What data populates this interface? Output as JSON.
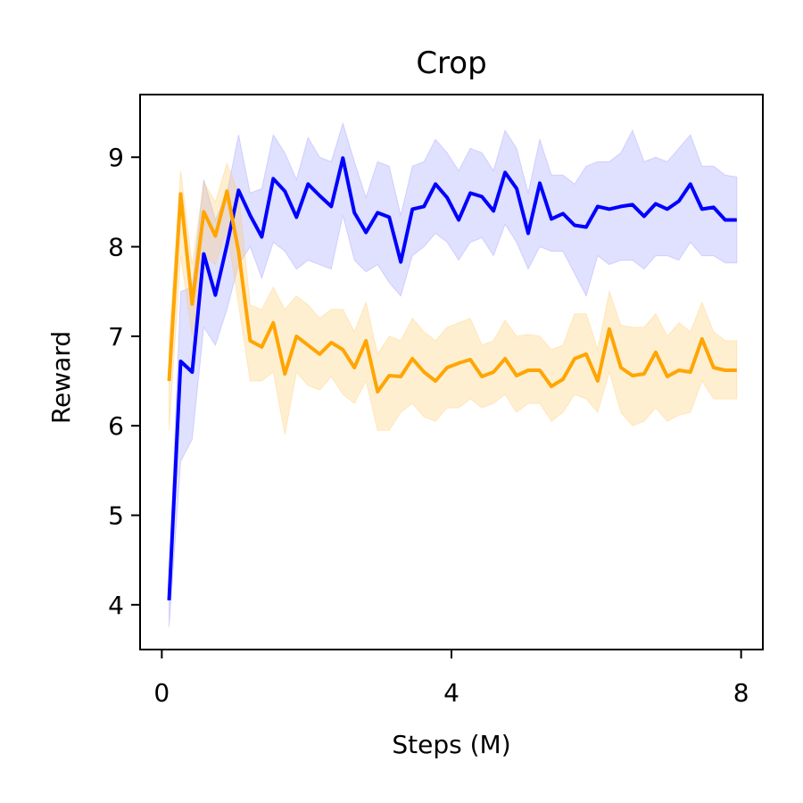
{
  "chart_data": {
    "type": "line",
    "title": "Crop",
    "xlabel": "Steps (M)",
    "ylabel": "Reward",
    "xlim": [
      -0.3,
      8.3
    ],
    "ylim": [
      3.5,
      9.7
    ],
    "xticks": [
      0,
      4,
      8
    ],
    "xtick_labels": [
      "0",
      "4",
      "8"
    ],
    "yticks": [
      4,
      5,
      6,
      7,
      8,
      9
    ],
    "ytick_labels": [
      "4",
      "5",
      "6",
      "7",
      "8",
      "9"
    ],
    "grid": false,
    "x": [
      0.1,
      0.26,
      0.42,
      0.58,
      0.74,
      0.9,
      1.06,
      1.22,
      1.38,
      1.54,
      1.7,
      1.86,
      2.02,
      2.18,
      2.34,
      2.5,
      2.66,
      2.82,
      2.98,
      3.14,
      3.3,
      3.46,
      3.62,
      3.78,
      3.94,
      4.1,
      4.26,
      4.42,
      4.58,
      4.74,
      4.9,
      5.06,
      5.22,
      5.38,
      5.54,
      5.7,
      5.86,
      6.02,
      6.18,
      6.34,
      6.5,
      6.66,
      6.82,
      6.98,
      7.14,
      7.3,
      7.46,
      7.62,
      7.78,
      7.94
    ],
    "series": [
      {
        "color": "#0000ff",
        "band_color": "#9999ff",
        "values": [
          4.05,
          6.72,
          6.6,
          7.92,
          7.46,
          8.02,
          8.63,
          8.35,
          8.11,
          8.76,
          8.62,
          8.33,
          8.7,
          8.57,
          8.45,
          8.99,
          8.38,
          8.16,
          8.38,
          8.33,
          7.83,
          8.42,
          8.45,
          8.7,
          8.55,
          8.3,
          8.6,
          8.56,
          8.4,
          8.83,
          8.65,
          8.15,
          8.71,
          8.31,
          8.37,
          8.24,
          8.22,
          8.45,
          8.42,
          8.45,
          8.47,
          8.34,
          8.48,
          8.42,
          8.51,
          8.7,
          8.42,
          8.44,
          8.3,
          8.3
        ],
        "lower": [
          3.75,
          5.6,
          5.85,
          7.1,
          6.9,
          7.3,
          7.8,
          8.0,
          7.65,
          8.05,
          7.95,
          7.75,
          7.85,
          7.8,
          7.75,
          8.35,
          7.85,
          7.72,
          7.8,
          7.6,
          7.45,
          7.9,
          8.0,
          8.15,
          8.05,
          7.85,
          8.05,
          8.1,
          7.9,
          8.25,
          8.05,
          7.75,
          8.0,
          7.95,
          7.95,
          7.7,
          7.45,
          7.9,
          7.8,
          7.85,
          7.85,
          7.75,
          7.9,
          7.9,
          7.85,
          8.05,
          7.9,
          7.9,
          7.82,
          7.82
        ],
        "upper": [
          4.3,
          7.5,
          7.55,
          8.75,
          8.3,
          8.6,
          9.25,
          8.6,
          8.65,
          9.25,
          9.05,
          8.75,
          9.22,
          9.0,
          8.95,
          9.38,
          8.95,
          8.55,
          8.95,
          8.9,
          8.35,
          8.9,
          8.95,
          9.2,
          9.05,
          8.85,
          9.1,
          9.05,
          8.85,
          9.3,
          9.1,
          8.6,
          9.2,
          8.8,
          8.8,
          8.7,
          8.9,
          8.95,
          8.95,
          9.05,
          9.3,
          8.95,
          9.0,
          8.95,
          9.1,
          9.25,
          8.9,
          8.9,
          8.8,
          8.78
        ]
      },
      {
        "color": "#ffa500",
        "band_color": "#ffc966",
        "values": [
          6.5,
          8.59,
          7.36,
          8.39,
          8.12,
          8.62,
          7.95,
          6.95,
          6.88,
          7.15,
          6.58,
          7.0,
          6.9,
          6.8,
          6.93,
          6.85,
          6.65,
          6.95,
          6.38,
          6.56,
          6.55,
          6.75,
          6.6,
          6.5,
          6.65,
          6.7,
          6.74,
          6.55,
          6.6,
          6.75,
          6.56,
          6.62,
          6.62,
          6.44,
          6.52,
          6.75,
          6.8,
          6.5,
          7.08,
          6.65,
          6.56,
          6.58,
          6.82,
          6.55,
          6.62,
          6.6,
          6.97,
          6.65,
          6.62,
          6.62
        ],
        "lower": [
          5.95,
          7.9,
          7.0,
          7.9,
          7.8,
          8.2,
          7.35,
          6.5,
          6.5,
          6.6,
          5.9,
          6.6,
          6.45,
          6.4,
          6.55,
          6.35,
          6.25,
          6.5,
          5.95,
          5.95,
          6.15,
          6.25,
          6.1,
          6.05,
          6.2,
          6.2,
          6.3,
          6.2,
          6.25,
          6.35,
          6.15,
          6.25,
          6.25,
          6.05,
          6.15,
          6.35,
          6.3,
          6.15,
          6.6,
          6.15,
          6.0,
          6.05,
          6.2,
          6.05,
          6.12,
          6.15,
          6.5,
          6.3,
          6.3,
          6.3
        ],
        "upper": [
          6.95,
          8.85,
          7.8,
          8.72,
          8.5,
          8.93,
          8.6,
          7.35,
          7.3,
          7.55,
          7.3,
          7.45,
          7.35,
          7.2,
          7.3,
          7.3,
          7.05,
          7.38,
          6.8,
          7.0,
          6.95,
          7.2,
          7.05,
          6.95,
          7.1,
          7.15,
          7.2,
          6.9,
          6.95,
          7.18,
          7.0,
          7.02,
          7.0,
          6.85,
          6.9,
          7.25,
          7.25,
          6.85,
          7.5,
          7.12,
          7.1,
          7.1,
          7.25,
          7.0,
          7.15,
          7.05,
          7.38,
          7.05,
          6.95,
          6.95
        ]
      }
    ]
  }
}
